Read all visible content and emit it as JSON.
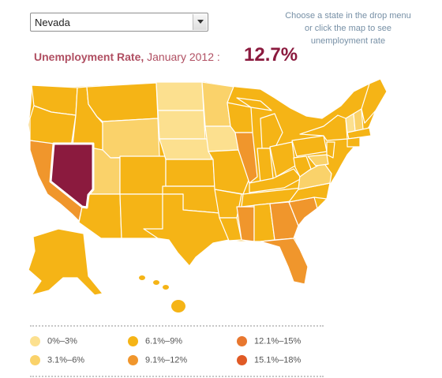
{
  "state_select": {
    "selected": "Nevada"
  },
  "hint": {
    "text": "Choose a state in the drop menu or click the map to see unemployment rate"
  },
  "rate": {
    "label": "Unemployment Rate,",
    "period": "January 2012 :",
    "value": "12.7%"
  },
  "legend": [
    {
      "label": "0%–3%",
      "color": "#fce08f"
    },
    {
      "label": "3.1%–6%",
      "color": "#fad26a"
    },
    {
      "label": "6.1%–9%",
      "color": "#f5b416"
    },
    {
      "label": "9.1%–12%",
      "color": "#f0962c"
    },
    {
      "label": "12.1%–15%",
      "color": "#e8772f"
    },
    {
      "label": "15.1%–18%",
      "color": "#e05a25"
    }
  ],
  "colors": {
    "selected_state": "#8b1a3e",
    "selected_outline": "#ffffff"
  },
  "map": {
    "selected_state": "Nevada"
  }
}
